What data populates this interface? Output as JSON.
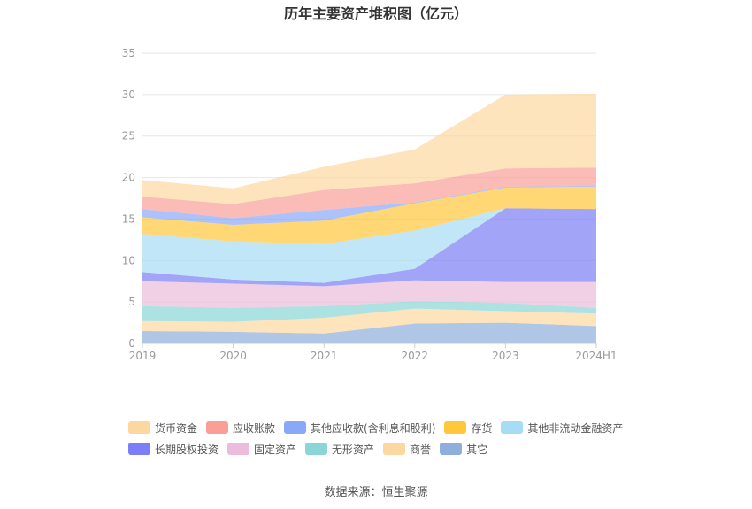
{
  "chart_data": {
    "type": "area",
    "stacked": true,
    "title": "历年主要资产堆积图（亿元）",
    "categories": [
      "2019",
      "2020",
      "2021",
      "2022",
      "2023",
      "2024H1"
    ],
    "ylim": [
      0,
      35
    ],
    "yticks": [
      0,
      5,
      10,
      15,
      20,
      25,
      30,
      35
    ],
    "grid": true,
    "legend_position": "bottom",
    "series": [
      {
        "name": "其它",
        "color": "#8eaedb",
        "values": [
          1.5,
          1.4,
          1.2,
          2.4,
          2.5,
          2.1
        ]
      },
      {
        "name": "商誉",
        "color": "#fcd8a0",
        "values": [
          1.2,
          1.2,
          1.9,
          1.8,
          1.4,
          1.5
        ]
      },
      {
        "name": "无形资产",
        "color": "#8ad6d6",
        "values": [
          1.8,
          1.7,
          1.4,
          0.9,
          1.0,
          0.7
        ]
      },
      {
        "name": "固定资产",
        "color": "#ebbcdc",
        "values": [
          3.0,
          2.9,
          2.4,
          2.5,
          2.5,
          3.1
        ]
      },
      {
        "name": "长期股权投资",
        "color": "#7b7ef5",
        "values": [
          1.1,
          0.5,
          0.4,
          1.4,
          8.9,
          8.8
        ]
      },
      {
        "name": "其他非流动金融资产",
        "color": "#a6dcf5",
        "values": [
          4.6,
          4.6,
          4.7,
          4.6,
          0.0,
          0.0
        ]
      },
      {
        "name": "存货",
        "color": "#ffc83a",
        "values": [
          2.0,
          2.0,
          2.8,
          3.3,
          2.5,
          2.7
        ]
      },
      {
        "name": "其他应收款(含利息和股利)",
        "color": "#8aa8f8",
        "values": [
          1.0,
          0.8,
          1.3,
          0.1,
          0.1,
          0.1
        ]
      },
      {
        "name": "应收账款",
        "color": "#fa9e98",
        "values": [
          1.5,
          1.7,
          2.4,
          2.3,
          2.2,
          2.2
        ]
      },
      {
        "name": "货币资金",
        "color": "#fcd8a0",
        "values": [
          2.0,
          1.9,
          2.8,
          4.1,
          8.9,
          8.9
        ]
      }
    ],
    "legend_order": [
      "货币资金",
      "应收账款",
      "其他应收款(含利息和股利)",
      "存货",
      "其他非流动金融资产",
      "长期股权投资",
      "固定资产",
      "无形资产",
      "商誉",
      "其它"
    ]
  },
  "source": "数据来源：恒生聚源"
}
